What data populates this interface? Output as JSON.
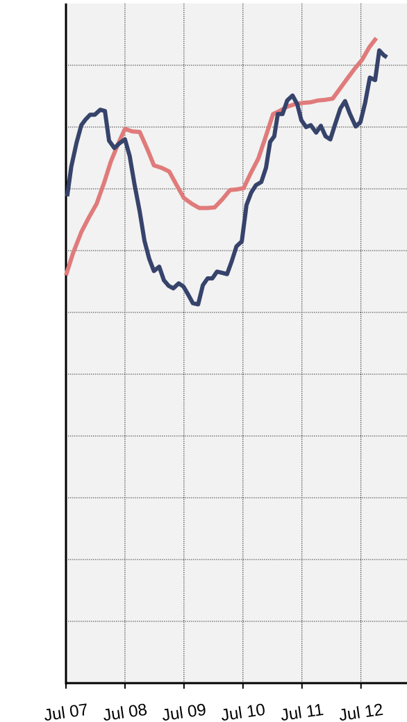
{
  "chart_data": {
    "type": "line",
    "xlim": [
      0,
      5.78
    ],
    "ylim": [
      0,
      11
    ],
    "xticks": [
      {
        "value": 0,
        "label": "Jul 07"
      },
      {
        "value": 1,
        "label": "Jul 08"
      },
      {
        "value": 2,
        "label": "Jul 09"
      },
      {
        "value": 3,
        "label": "Jul 10"
      },
      {
        "value": 4,
        "label": "Jul 11"
      },
      {
        "value": 5,
        "label": "Jul 12"
      }
    ],
    "yticks": [
      0,
      1,
      2,
      3,
      4,
      5,
      6,
      7,
      8,
      9,
      10
    ],
    "grid": true,
    "series": [
      {
        "color": "#e07b7b",
        "x": [
          0,
          0.12,
          0.26,
          0.39,
          0.52,
          0.65,
          0.76,
          0.88,
          1.0,
          1.12,
          1.25,
          1.38,
          1.49,
          1.62,
          1.75,
          1.87,
          2.0,
          2.13,
          2.26,
          2.39,
          2.52,
          2.65,
          2.78,
          2.89,
          3.01,
          3.13,
          3.26,
          3.38,
          3.51,
          3.62,
          3.75,
          3.88,
          4.01,
          4.14,
          4.27,
          4.39,
          4.52,
          4.65,
          4.78,
          4.89,
          5.02,
          5.14,
          5.26
        ],
        "values": [
          6.6,
          6.96,
          7.3,
          7.54,
          7.76,
          8.11,
          8.44,
          8.72,
          8.97,
          8.93,
          8.92,
          8.64,
          8.38,
          8.34,
          8.28,
          8.07,
          7.85,
          7.76,
          7.69,
          7.69,
          7.7,
          7.83,
          7.98,
          7.99,
          8.01,
          8.25,
          8.49,
          8.83,
          9.21,
          9.26,
          9.33,
          9.37,
          9.39,
          9.4,
          9.43,
          9.44,
          9.46,
          9.63,
          9.8,
          9.94,
          10.09,
          10.29,
          10.44
        ]
      },
      {
        "color": "#36436b",
        "x": [
          0.02,
          0.09,
          0.18,
          0.26,
          0.33,
          0.41,
          0.49,
          0.58,
          0.66,
          0.73,
          0.82,
          0.91,
          1.0,
          1.08,
          1.16,
          1.25,
          1.33,
          1.41,
          1.49,
          1.58,
          1.66,
          1.74,
          1.82,
          1.91,
          1.99,
          2.07,
          2.15,
          2.24,
          2.32,
          2.4,
          2.48,
          2.56,
          2.65,
          2.73,
          2.81,
          2.89,
          2.98,
          3.06,
          3.14,
          3.22,
          3.31,
          3.39,
          3.46,
          3.53,
          3.59,
          3.67,
          3.75,
          3.84,
          3.92,
          3.99,
          4.07,
          4.15,
          4.24,
          4.32,
          4.4,
          4.48,
          4.56,
          4.65,
          4.73,
          4.81,
          4.91,
          4.99,
          5.07,
          5.15,
          5.24,
          5.31,
          5.39,
          5.44
        ],
        "values": [
          7.88,
          8.36,
          8.75,
          9.03,
          9.12,
          9.2,
          9.2,
          9.28,
          9.26,
          8.78,
          8.66,
          8.74,
          8.8,
          8.53,
          8.08,
          7.63,
          7.16,
          6.87,
          6.67,
          6.74,
          6.52,
          6.43,
          6.39,
          6.47,
          6.42,
          6.29,
          6.15,
          6.13,
          6.44,
          6.55,
          6.55,
          6.66,
          6.64,
          6.62,
          6.83,
          7.07,
          7.15,
          7.74,
          7.94,
          8.06,
          8.11,
          8.34,
          8.76,
          8.85,
          9.21,
          9.21,
          9.43,
          9.51,
          9.37,
          9.11,
          9.0,
          9.03,
          8.91,
          9.02,
          8.85,
          8.8,
          9.04,
          9.3,
          9.42,
          9.22,
          9.01,
          9.08,
          9.39,
          9.8,
          9.76,
          10.24,
          10.16,
          10.13
        ]
      }
    ]
  }
}
